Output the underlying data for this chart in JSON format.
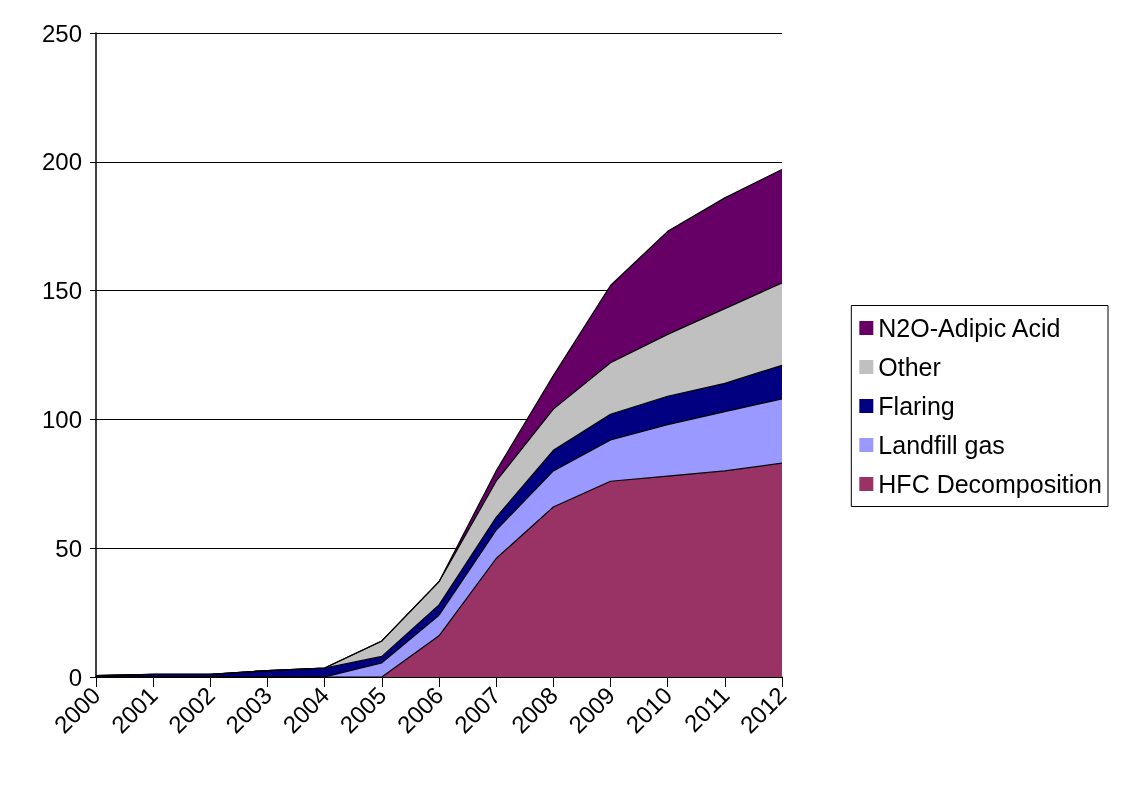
{
  "chart_data": {
    "type": "area",
    "stacked": true,
    "categories": [
      "2000",
      "2001",
      "2002",
      "2003",
      "2004",
      "2005",
      "2006",
      "2007",
      "2008",
      "2009",
      "2010",
      "2011",
      "2012"
    ],
    "series": [
      {
        "name": "HFC Decomposition",
        "color": "#993366",
        "values": [
          0,
          0,
          0,
          0,
          0,
          0,
          16,
          46,
          66,
          76,
          78,
          80,
          83
        ]
      },
      {
        "name": "Landfill gas",
        "color": "#9999ff",
        "values": [
          0,
          0,
          0,
          0,
          0,
          5.5,
          8,
          11,
          14,
          16,
          20,
          23,
          25
        ]
      },
      {
        "name": "Flaring",
        "color": "#000080",
        "values": [
          0.5,
          1,
          1,
          2.5,
          3.5,
          2.5,
          4,
          5,
          8,
          10,
          11,
          11,
          13
        ]
      },
      {
        "name": "Other",
        "color": "#c0c0c0",
        "values": [
          0,
          0,
          0,
          0,
          0,
          6,
          9,
          14,
          16,
          20,
          24,
          29,
          32
        ]
      },
      {
        "name": "N2O-Adipic Acid",
        "color": "#660066",
        "values": [
          0,
          0,
          0,
          0,
          0,
          0,
          0,
          4,
          13,
          30,
          40,
          43,
          44
        ]
      }
    ],
    "ylim": [
      0,
      250
    ],
    "yticks": [
      0,
      50,
      100,
      150,
      200,
      250
    ],
    "grid": "y",
    "legend": "right"
  }
}
